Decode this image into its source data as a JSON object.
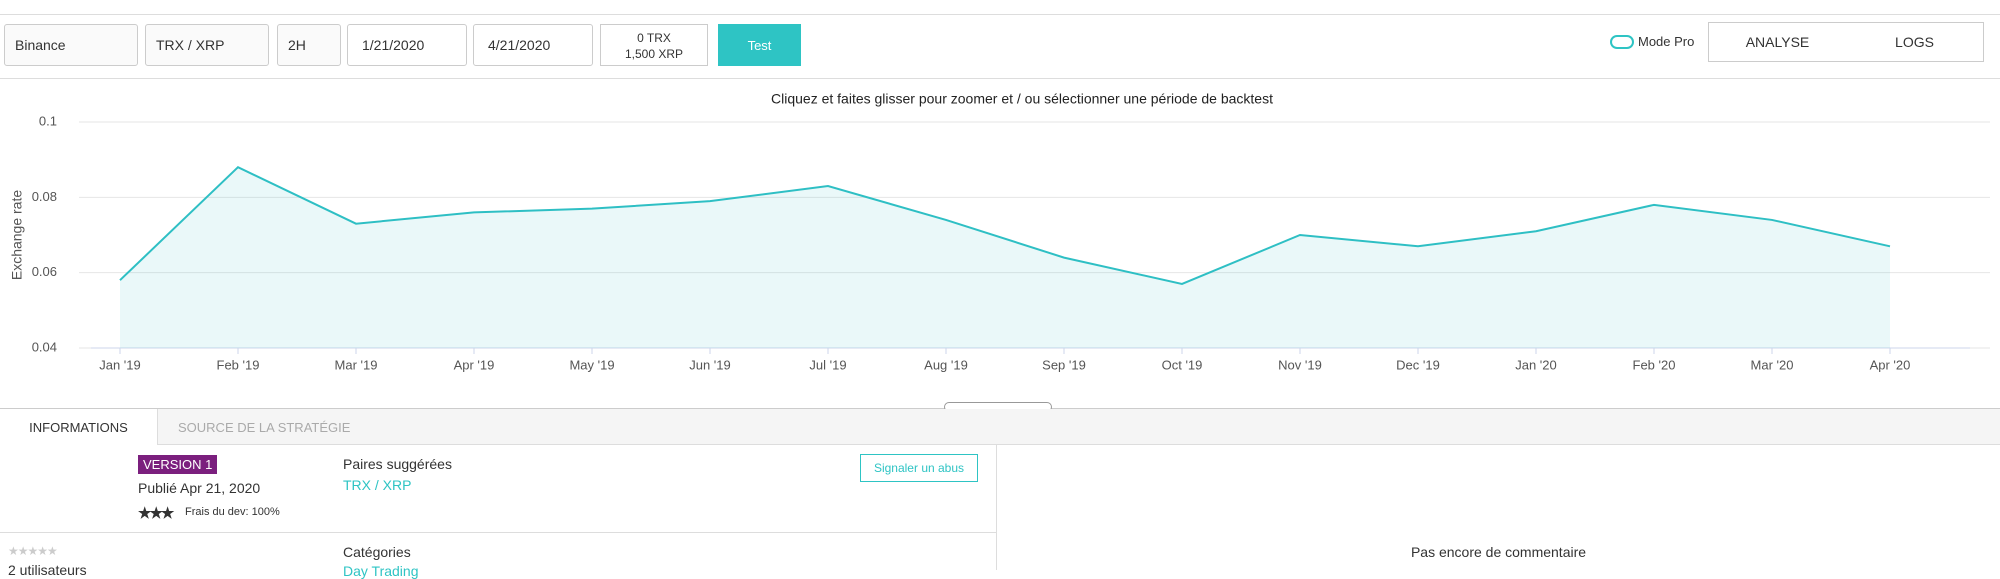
{
  "toolbar": {
    "exchange": "Binance",
    "pair": "TRX / XRP",
    "interval": "2H",
    "start_date": "1/21/2020",
    "end_date": "4/21/2020",
    "balance": [
      "0 TRX",
      "1,500 XRP"
    ],
    "test_button": "Test",
    "mode_pro": "Mode Pro",
    "view_tabs": [
      "ANALYSE",
      "LOGS"
    ]
  },
  "chart_data": {
    "type": "line",
    "title": "Cliquez et faites glisser pour zoomer et / ou sélectionner une période de backtest",
    "y_label": "Exchange rate",
    "x": [
      "2019-01",
      "2019-02",
      "2019-03",
      "2019-04",
      "2019-05",
      "2019-06",
      "2019-07",
      "2019-08",
      "2019-09",
      "2019-10",
      "2019-11",
      "2019-12",
      "2020-01",
      "2020-02",
      "2020-03",
      "2020-04"
    ],
    "series": [
      {
        "name": "TRX / XRP",
        "color": "#2ebfc4",
        "values": [
          0.058,
          0.088,
          0.073,
          0.076,
          0.077,
          0.079,
          0.083,
          0.074,
          0.064,
          0.057,
          0.07,
          0.067,
          0.071,
          0.078,
          0.074,
          0.067
        ]
      }
    ],
    "xticks": [
      {
        "value": "2019-01",
        "label": "Jan '19"
      },
      {
        "value": "2019-02",
        "label": "Feb '19"
      },
      {
        "value": "2019-03",
        "label": "Mar '19"
      },
      {
        "value": "2019-04",
        "label": "Apr '19"
      },
      {
        "value": "2019-05",
        "label": "May '19"
      },
      {
        "value": "2019-06",
        "label": "Jun '19"
      },
      {
        "value": "2019-07",
        "label": "Jul '19"
      },
      {
        "value": "2019-08",
        "label": "Aug '19"
      },
      {
        "value": "2019-09",
        "label": "Sep '19"
      },
      {
        "value": "2019-10",
        "label": "Oct '19"
      },
      {
        "value": "2019-11",
        "label": "Nov '19"
      },
      {
        "value": "2019-12",
        "label": "Dec '19"
      },
      {
        "value": "2020-01",
        "label": "Jan '20"
      },
      {
        "value": "2020-02",
        "label": "Feb '20"
      },
      {
        "value": "2020-03",
        "label": "Mar '20"
      },
      {
        "value": "2020-04",
        "label": "Apr '20"
      }
    ],
    "ylim": [
      0.04,
      0.1
    ],
    "yticks": [
      0.04,
      0.06,
      0.08,
      0.1
    ],
    "grid": true
  },
  "tabs": [
    "INFORMATIONS",
    "SOURCE DE LA STRATÉGIE"
  ],
  "info": {
    "version": "VERSION 1",
    "published": "Publié Apr 21, 2020",
    "fees": "Frais du dev: 100%",
    "pairs_title": "Paires suggérées",
    "pairs": "TRX / XRP",
    "report_button": "Signaler un abus",
    "users": "2 utilisateurs",
    "categories_title": "Catégories",
    "category": "Day Trading"
  },
  "comments": "Pas encore de commentaire"
}
